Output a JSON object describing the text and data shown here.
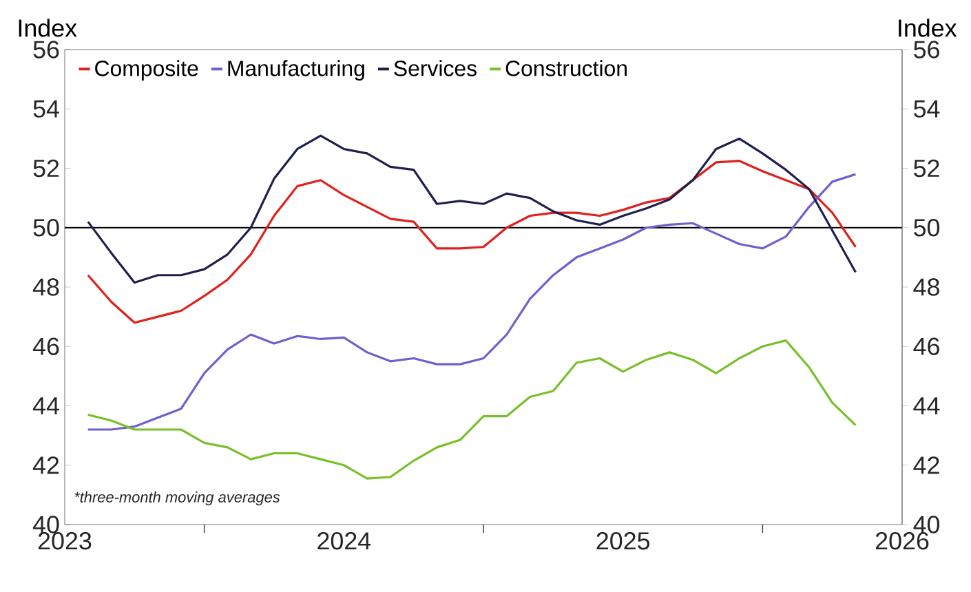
{
  "chart_data": {
    "type": "line",
    "ylabel": "Index",
    "y2label": "Index",
    "x": [
      "2023-02",
      "2023-03",
      "2023-04",
      "2023-05",
      "2023-06",
      "2023-07",
      "2023-08",
      "2023-09",
      "2023-10",
      "2023-11",
      "2023-12",
      "2024-01",
      "2024-02",
      "2024-03",
      "2024-04",
      "2024-05",
      "2024-06",
      "2024-07",
      "2024-08",
      "2024-09",
      "2024-10",
      "2024-11",
      "2024-12",
      "2025-01",
      "2025-02",
      "2025-03",
      "2025-04",
      "2025-05",
      "2025-06",
      "2025-07",
      "2025-08",
      "2025-09",
      "2025-10",
      "2025-11"
    ],
    "series": [
      {
        "name": "Composite",
        "color": "#e0201b",
        "values": [
          48.4,
          47.5,
          46.8,
          47.0,
          47.2,
          47.7,
          48.25,
          49.1,
          50.4,
          51.4,
          51.6,
          51.1,
          50.7,
          50.3,
          50.2,
          49.3,
          49.3,
          49.35,
          50.0,
          50.4,
          50.5,
          50.5,
          50.4,
          50.6,
          50.85,
          51.0,
          51.6,
          52.2,
          52.25,
          51.9,
          51.6,
          51.3,
          50.5,
          49.35
        ]
      },
      {
        "name": "Manufacturing",
        "color": "#6f5fcf",
        "values": [
          43.2,
          43.2,
          43.3,
          43.6,
          43.9,
          45.1,
          45.9,
          46.4,
          46.1,
          46.35,
          46.25,
          46.3,
          45.8,
          45.5,
          45.6,
          45.4,
          45.4,
          45.6,
          46.4,
          47.6,
          48.4,
          49.0,
          49.3,
          49.6,
          50.0,
          50.1,
          50.15,
          49.8,
          49.45,
          49.3,
          49.7,
          50.7,
          51.55,
          51.8
        ]
      },
      {
        "name": "Services",
        "color": "#1f1f4f",
        "values": [
          50.2,
          49.15,
          48.15,
          48.4,
          48.4,
          48.6,
          49.1,
          50.0,
          51.65,
          52.65,
          53.1,
          52.65,
          52.5,
          52.05,
          51.95,
          50.8,
          50.9,
          50.8,
          51.15,
          51.0,
          50.55,
          50.25,
          50.1,
          50.4,
          50.65,
          50.95,
          51.6,
          52.65,
          53.0,
          52.5,
          51.95,
          51.3,
          49.9,
          48.5
        ]
      },
      {
        "name": "Construction",
        "color": "#77c02a",
        "values": [
          43.7,
          43.5,
          43.2,
          43.2,
          43.2,
          42.75,
          42.6,
          42.2,
          42.4,
          42.4,
          42.2,
          42.0,
          41.55,
          41.6,
          42.15,
          42.6,
          42.85,
          43.65,
          43.65,
          44.3,
          44.5,
          45.45,
          45.6,
          45.15,
          45.55,
          45.8,
          45.55,
          45.1,
          45.6,
          46.0,
          46.2,
          45.3,
          44.1,
          43.35
        ]
      }
    ],
    "xlim": [
      "2023-01",
      "2026-01"
    ],
    "xticks": [
      {
        "value": "2023",
        "label": "2023"
      },
      {
        "value": "2023-07",
        "label": null
      },
      {
        "value": "2024",
        "label": "2024"
      },
      {
        "value": "2024-07",
        "label": null
      },
      {
        "value": "2025",
        "label": "2025"
      },
      {
        "value": "2025-07",
        "label": null
      },
      {
        "value": "2026",
        "label": "2026"
      }
    ],
    "ylim": [
      40,
      56
    ],
    "yticks": [
      40,
      42,
      44,
      46,
      48,
      50,
      52,
      54,
      56
    ],
    "y2lim": [
      40,
      56
    ],
    "y2ticks": [
      40,
      42,
      44,
      46,
      48,
      50,
      52,
      54,
      56
    ],
    "ref_lines": [
      {
        "axis": "y",
        "value": 50,
        "color": "#000000"
      }
    ],
    "annotations": [
      "*three-month moving averages"
    ],
    "legend": "top left",
    "grid": false,
    "marker": "none",
    "line_style": "solid"
  }
}
